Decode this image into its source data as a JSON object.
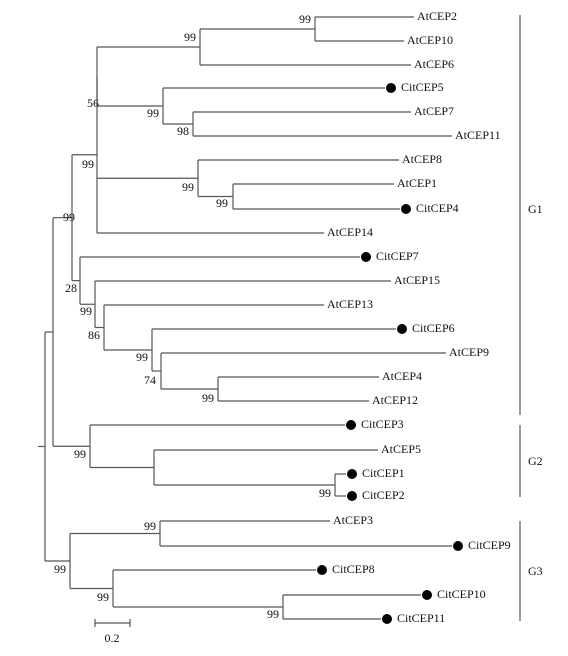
{
  "leaves": [
    "AtCEP2",
    "AtCEP10",
    "AtCEP6",
    "CitCEP5",
    "AtCEP7",
    "AtCEP11",
    "AtCEP8",
    "AtCEP1",
    "CitCEP4",
    "AtCEP14",
    "CitCEP7",
    "AtCEP15",
    "AtCEP13",
    "CitCEP6",
    "AtCEP9",
    "AtCEP4",
    "AtCEP12",
    "CitCEP3",
    "AtCEP5",
    "CitCEP1",
    "CitCEP2",
    "AtCEP3",
    "CitCEP9",
    "CitCEP8",
    "CitCEP10",
    "CitCEP11"
  ],
  "bootstrap": [
    "99",
    "99",
    "99",
    "98",
    "56",
    "99",
    "99",
    "99",
    "99",
    "28",
    "99",
    "86",
    "99",
    "74",
    "99",
    "99",
    "99",
    "99",
    "99",
    "99",
    "99"
  ],
  "groups": [
    "G1",
    "G2",
    "G3"
  ],
  "scale_bar": "0.2"
}
